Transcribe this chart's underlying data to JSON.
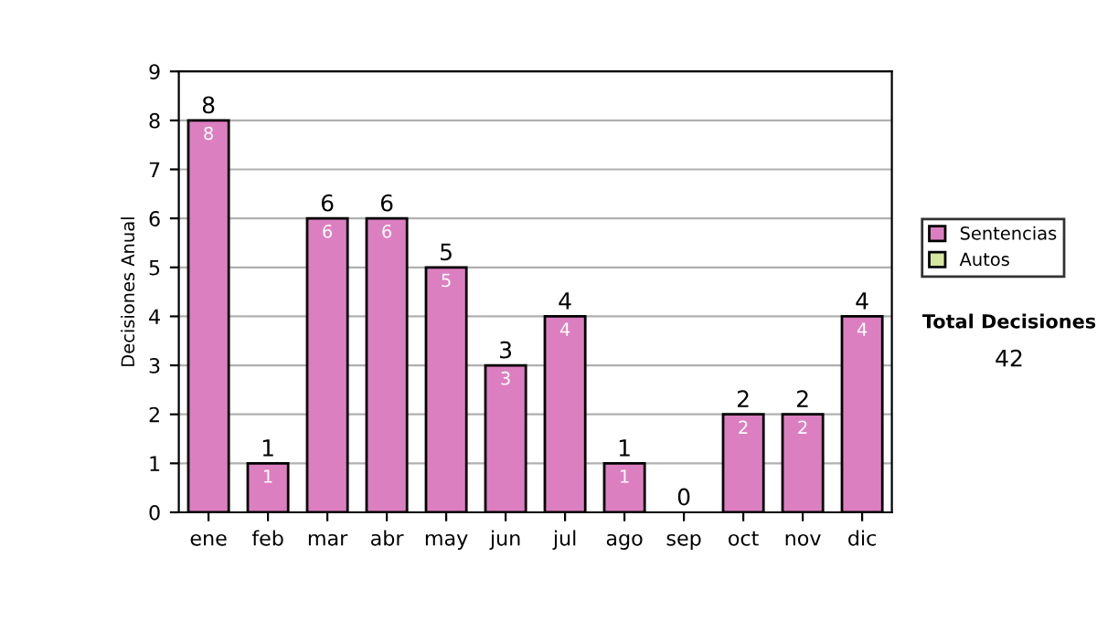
{
  "chart_data": {
    "type": "bar",
    "ylabel": "Decisiones Anual",
    "categories": [
      "ene",
      "feb",
      "mar",
      "abr",
      "may",
      "jun",
      "jul",
      "ago",
      "sep",
      "oct",
      "nov",
      "dic"
    ],
    "stacked": true,
    "series": [
      {
        "name": "Sentencias",
        "color": "#dc7fc0",
        "values": [
          8,
          1,
          6,
          6,
          5,
          3,
          4,
          1,
          0,
          2,
          2,
          4
        ],
        "value_labels": [
          "8",
          "1",
          "6",
          "6",
          "5",
          "3",
          "4",
          "1",
          null,
          "2",
          "2",
          "4"
        ]
      },
      {
        "name": "Autos",
        "color": "#d4e6a0",
        "values": [
          0,
          0,
          0,
          0,
          0,
          0,
          0,
          0,
          0,
          0,
          0,
          0
        ]
      }
    ],
    "totals": [
      "8",
      "1",
      "6",
      "6",
      "5",
      "3",
      "4",
      "1",
      "0",
      "2",
      "2",
      "4"
    ],
    "ylim": [
      0,
      9
    ],
    "yticks": [
      0,
      1,
      2,
      3,
      4,
      5,
      6,
      7,
      8,
      9
    ],
    "grid": "y",
    "legend": "right",
    "annotations": [
      "Total Decisiones",
      "42"
    ]
  }
}
